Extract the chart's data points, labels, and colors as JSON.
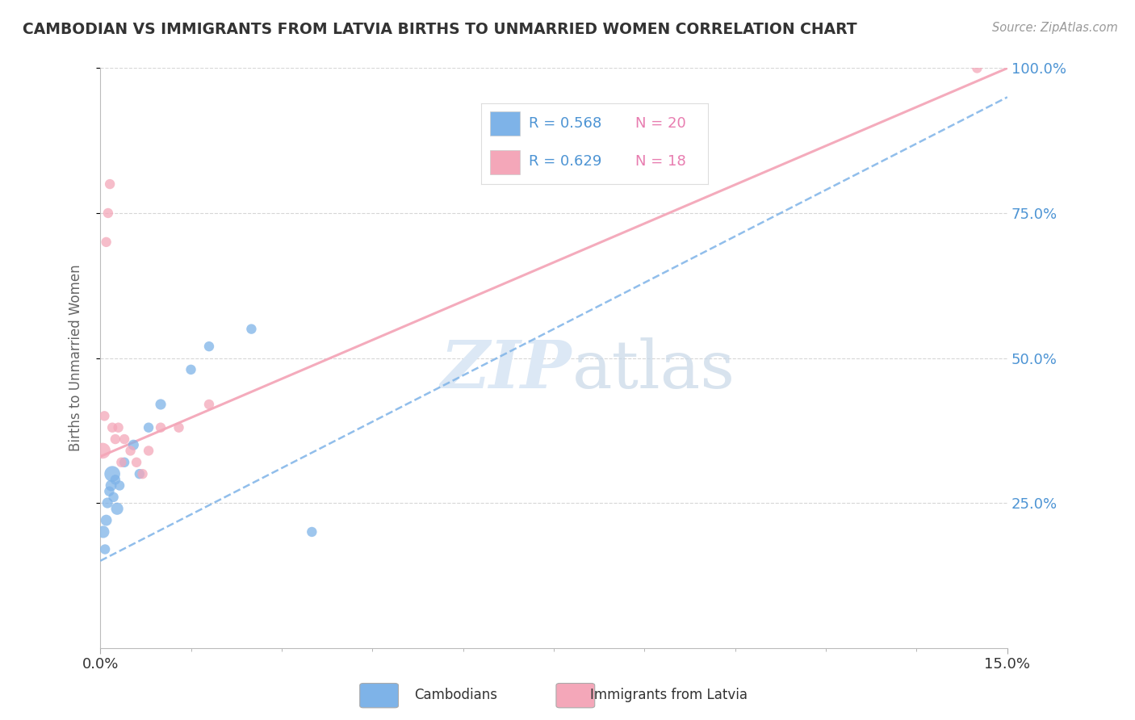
{
  "title": "CAMBODIAN VS IMMIGRANTS FROM LATVIA BIRTHS TO UNMARRIED WOMEN CORRELATION CHART",
  "source": "Source: ZipAtlas.com",
  "ylabel": "Births to Unmarried Women",
  "xlim": [
    0.0,
    15.0
  ],
  "ylim": [
    0.0,
    100.0
  ],
  "ytick_labels": [
    "25.0%",
    "50.0%",
    "75.0%",
    "100.0%"
  ],
  "ytick_values": [
    25.0,
    50.0,
    75.0,
    100.0
  ],
  "r_cambodian": 0.568,
  "n_cambodian": 20,
  "r_latvia": 0.629,
  "n_latvia": 18,
  "color_cambodian": "#7EB3E8",
  "color_latvia": "#F4A7B9",
  "color_title": "#333333",
  "color_axis_label": "#666666",
  "color_tick_label_x": "#333333",
  "color_tick_label_y": "#4d94d4",
  "color_n": "#e87db0",
  "color_watermark": "#dce8f5",
  "background_color": "#ffffff",
  "cambodian_x": [
    0.05,
    0.08,
    0.1,
    0.12,
    0.15,
    0.18,
    0.2,
    0.22,
    0.25,
    0.28,
    0.32,
    0.4,
    0.55,
    0.65,
    0.8,
    1.0,
    1.5,
    1.8,
    2.5,
    3.5
  ],
  "cambodian_y": [
    20.0,
    17.0,
    22.0,
    25.0,
    27.0,
    28.0,
    30.0,
    26.0,
    29.0,
    24.0,
    28.0,
    32.0,
    35.0,
    30.0,
    38.0,
    42.0,
    48.0,
    52.0,
    55.0,
    20.0
  ],
  "cambodian_size": [
    120,
    80,
    100,
    90,
    80,
    100,
    200,
    80,
    80,
    120,
    80,
    80,
    90,
    80,
    80,
    90,
    80,
    80,
    80,
    80
  ],
  "latvia_x": [
    0.04,
    0.07,
    0.1,
    0.13,
    0.16,
    0.2,
    0.25,
    0.3,
    0.35,
    0.4,
    0.5,
    0.6,
    0.7,
    0.8,
    1.0,
    1.3,
    1.8,
    14.5
  ],
  "latvia_y": [
    34.0,
    40.0,
    70.0,
    75.0,
    80.0,
    38.0,
    36.0,
    38.0,
    32.0,
    36.0,
    34.0,
    32.0,
    30.0,
    34.0,
    38.0,
    38.0,
    42.0,
    100.0
  ],
  "latvia_size": [
    200,
    80,
    80,
    80,
    80,
    80,
    80,
    80,
    80,
    80,
    80,
    80,
    80,
    80,
    80,
    80,
    80,
    80
  ],
  "cambodian_line_x0": 0.0,
  "cambodian_line_y0": 15.0,
  "cambodian_line_x1": 15.0,
  "cambodian_line_y1": 95.0,
  "latvia_line_x0": 0.0,
  "latvia_line_y0": 33.0,
  "latvia_line_x1": 15.0,
  "latvia_line_y1": 100.0
}
